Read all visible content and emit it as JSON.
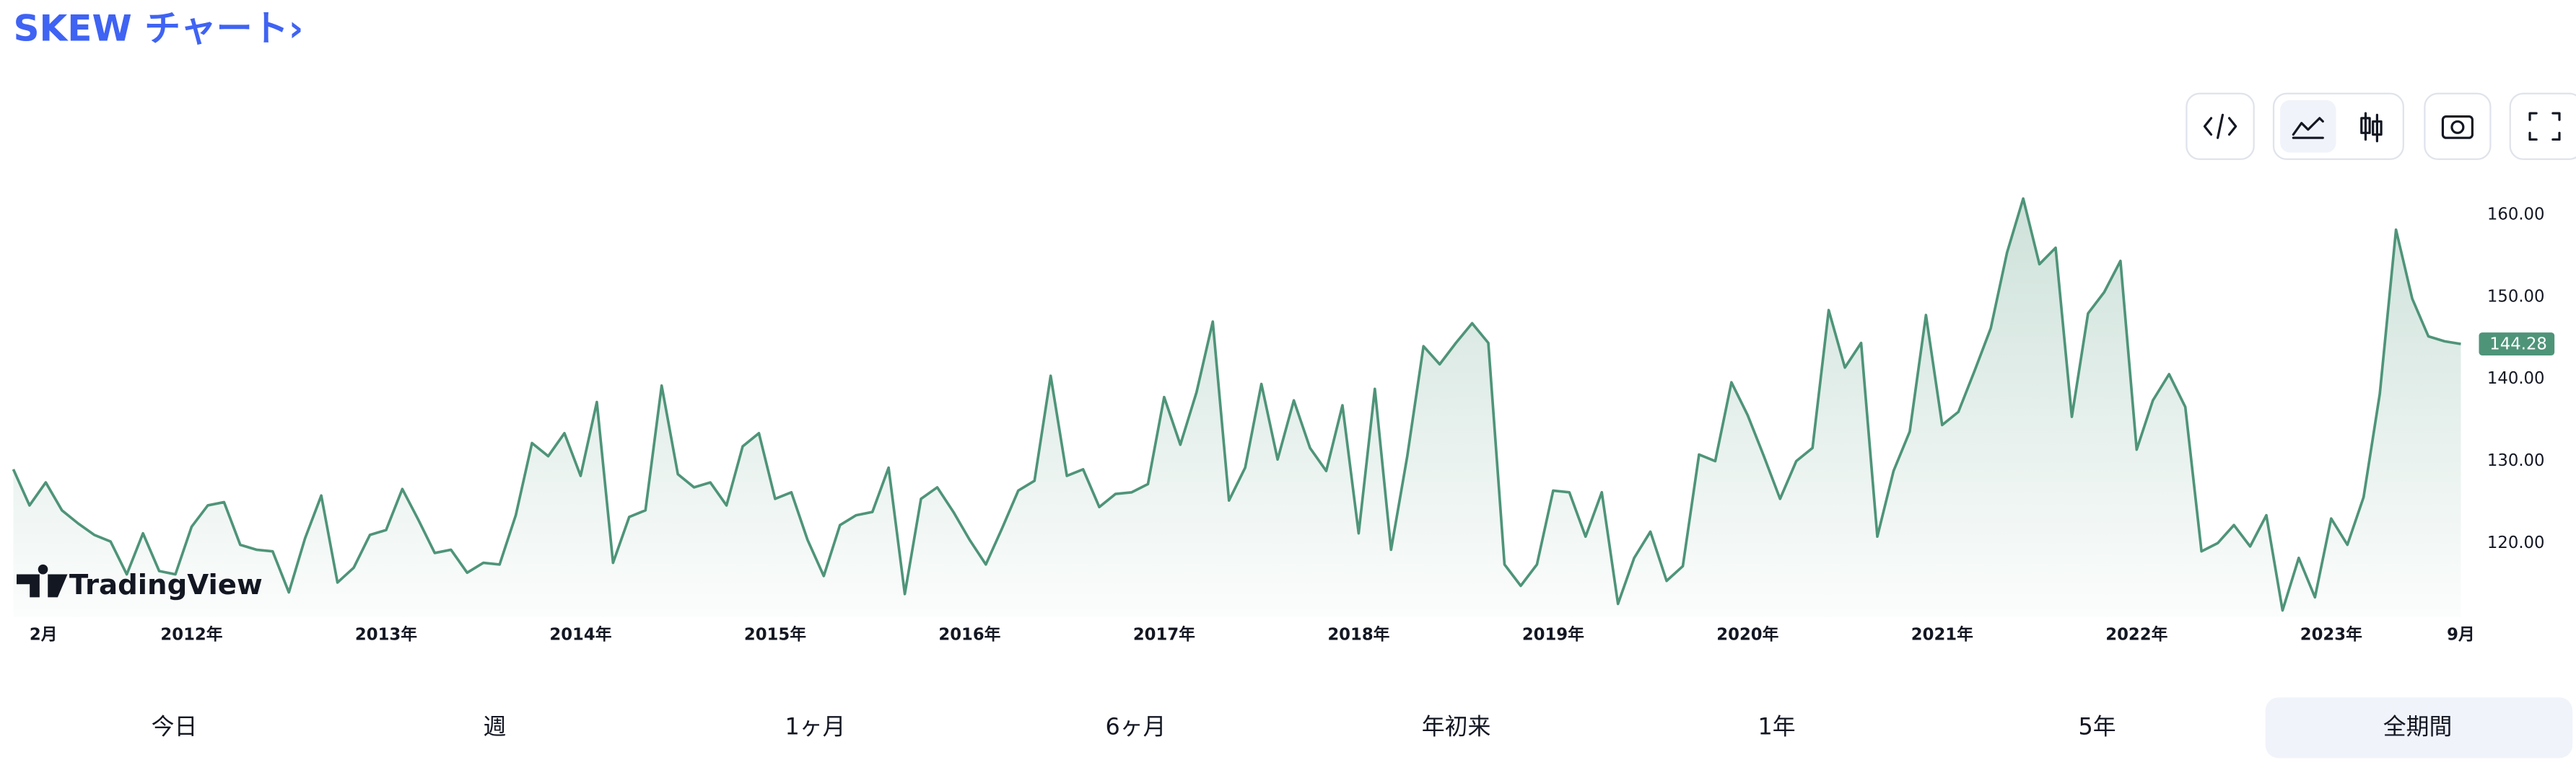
{
  "chart_data": {
    "type": "area",
    "title": "SKEW チャート›",
    "color": "#4e9479",
    "categories": [
      null,
      "2月",
      null,
      null,
      null,
      null,
      null,
      null,
      null,
      null,
      null,
      "2012年",
      null,
      null,
      null,
      null,
      null,
      null,
      null,
      null,
      null,
      null,
      null,
      "2013年",
      null,
      null,
      null,
      null,
      null,
      null,
      null,
      null,
      null,
      null,
      null,
      "2014年",
      null,
      null,
      null,
      null,
      null,
      null,
      null,
      null,
      null,
      null,
      null,
      "2015年",
      null,
      null,
      null,
      null,
      null,
      null,
      null,
      null,
      null,
      null,
      null,
      "2016年",
      null,
      null,
      null,
      null,
      null,
      null,
      null,
      null,
      null,
      null,
      null,
      "2017年",
      null,
      null,
      null,
      null,
      null,
      null,
      null,
      null,
      null,
      null,
      null,
      "2018年",
      null,
      null,
      null,
      null,
      null,
      null,
      null,
      null,
      null,
      null,
      null,
      "2019年",
      null,
      null,
      null,
      null,
      null,
      null,
      null,
      null,
      null,
      null,
      null,
      "2020年",
      null,
      null,
      null,
      null,
      null,
      null,
      null,
      null,
      null,
      null,
      null,
      "2021年",
      null,
      null,
      null,
      null,
      null,
      null,
      null,
      null,
      null,
      null,
      null,
      "2022年",
      null,
      null,
      null,
      null,
      null,
      null,
      null,
      null,
      null,
      null,
      null,
      "2023年",
      null,
      null,
      null,
      null,
      null,
      null,
      null,
      "9月"
    ],
    "values": [
      129,
      124.6,
      127.4,
      124,
      122.4,
      121,
      120.2,
      116.2,
      121.2,
      116.6,
      116.2,
      122,
      124.6,
      125,
      119.8,
      119.2,
      119,
      114,
      120.6,
      125.8,
      115.2,
      117,
      121,
      121.6,
      126.6,
      122.8,
      118.8,
      119.2,
      116.4,
      117.6,
      117.4,
      123.4,
      132.2,
      130.6,
      133.4,
      128.2,
      137.2,
      117.6,
      123.2,
      124,
      139.2,
      128.4,
      126.8,
      127.4,
      124.6,
      131.8,
      133.4,
      125.4,
      126.2,
      120.4,
      116,
      122.2,
      123.4,
      123.8,
      129.2,
      113.8,
      125.4,
      126.8,
      123.8,
      120.4,
      117.4,
      121.8,
      126.4,
      127.6,
      140.4,
      128.2,
      129,
      124.4,
      126,
      126.2,
      127.2,
      137.8,
      132,
      138.4,
      147,
      125.2,
      129.2,
      139.4,
      130.2,
      137.4,
      131.6,
      128.8,
      136.8,
      121.2,
      138.8,
      119.2,
      130.6,
      144,
      141.8,
      144.4,
      146.8,
      144.4,
      117.4,
      114.8,
      117.4,
      126.4,
      126.2,
      120.8,
      126.2,
      112.6,
      118.2,
      121.4,
      115.4,
      117.2,
      130.8,
      130,
      139.6,
      135.6,
      130.6,
      125.4,
      130,
      131.6,
      148.4,
      141.4,
      144.4,
      120.8,
      128.8,
      133.6,
      147.8,
      134.4,
      136,
      141,
      146.2,
      155.4,
      162,
      154,
      156,
      135.4,
      148,
      150.6,
      154.4,
      131.4,
      137.4,
      140.6,
      136.6,
      119,
      120,
      122.2,
      119.6,
      123.4,
      111.8,
      118.2,
      113.4,
      123,
      119.8,
      125.6,
      138.2,
      158.2,
      149.8,
      145.2,
      144.6,
      144.28
    ],
    "ylim": [
      111,
      165
    ],
    "yticks": [
      {
        "value": 120,
        "label": "120.00"
      },
      {
        "value": 130,
        "label": "130.00"
      },
      {
        "value": 140,
        "label": "140.00"
      },
      {
        "value": 150,
        "label": "150.00"
      },
      {
        "value": 160,
        "label": "160.00"
      }
    ],
    "grid": false
  },
  "watermark": "TradingView",
  "range_buttons": [
    "今日",
    "週",
    "1ヶ月",
    "6ヶ月",
    "年初来",
    "1年",
    "5年",
    "全期間"
  ]
}
